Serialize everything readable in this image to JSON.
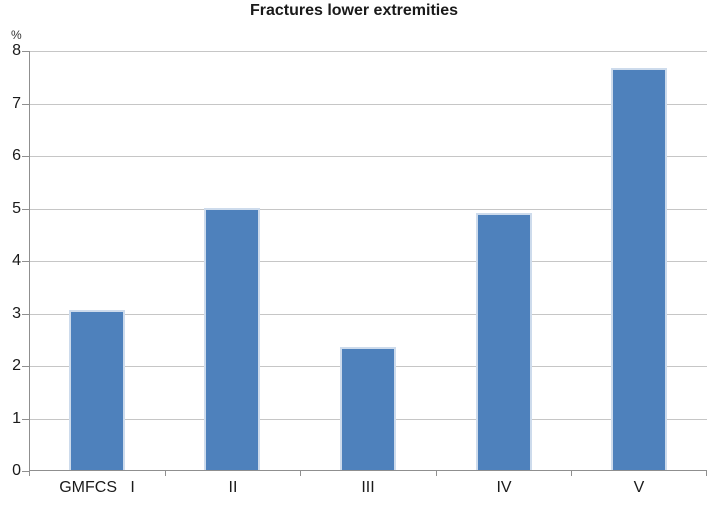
{
  "chart_data": {
    "type": "bar",
    "title": "Fractures lower extremities",
    "ylabel": "%",
    "xlabel": "GMFCS",
    "categories": [
      "GMFCS   I",
      "II",
      "III",
      "IV",
      "V"
    ],
    "values": [
      3.07,
      5.0,
      2.36,
      4.92,
      7.67
    ],
    "ylim": [
      0,
      8
    ],
    "yticks": [
      0,
      1,
      2,
      3,
      4,
      5,
      6,
      7,
      8
    ],
    "grid": true,
    "legend": false,
    "bar_color": "#4E81BC",
    "bar_border_color": "#CDDBEC",
    "gridline_color": "#C6C6C6",
    "axis_color": "#8F8F8F",
    "text_color": "#1a1a1a"
  }
}
